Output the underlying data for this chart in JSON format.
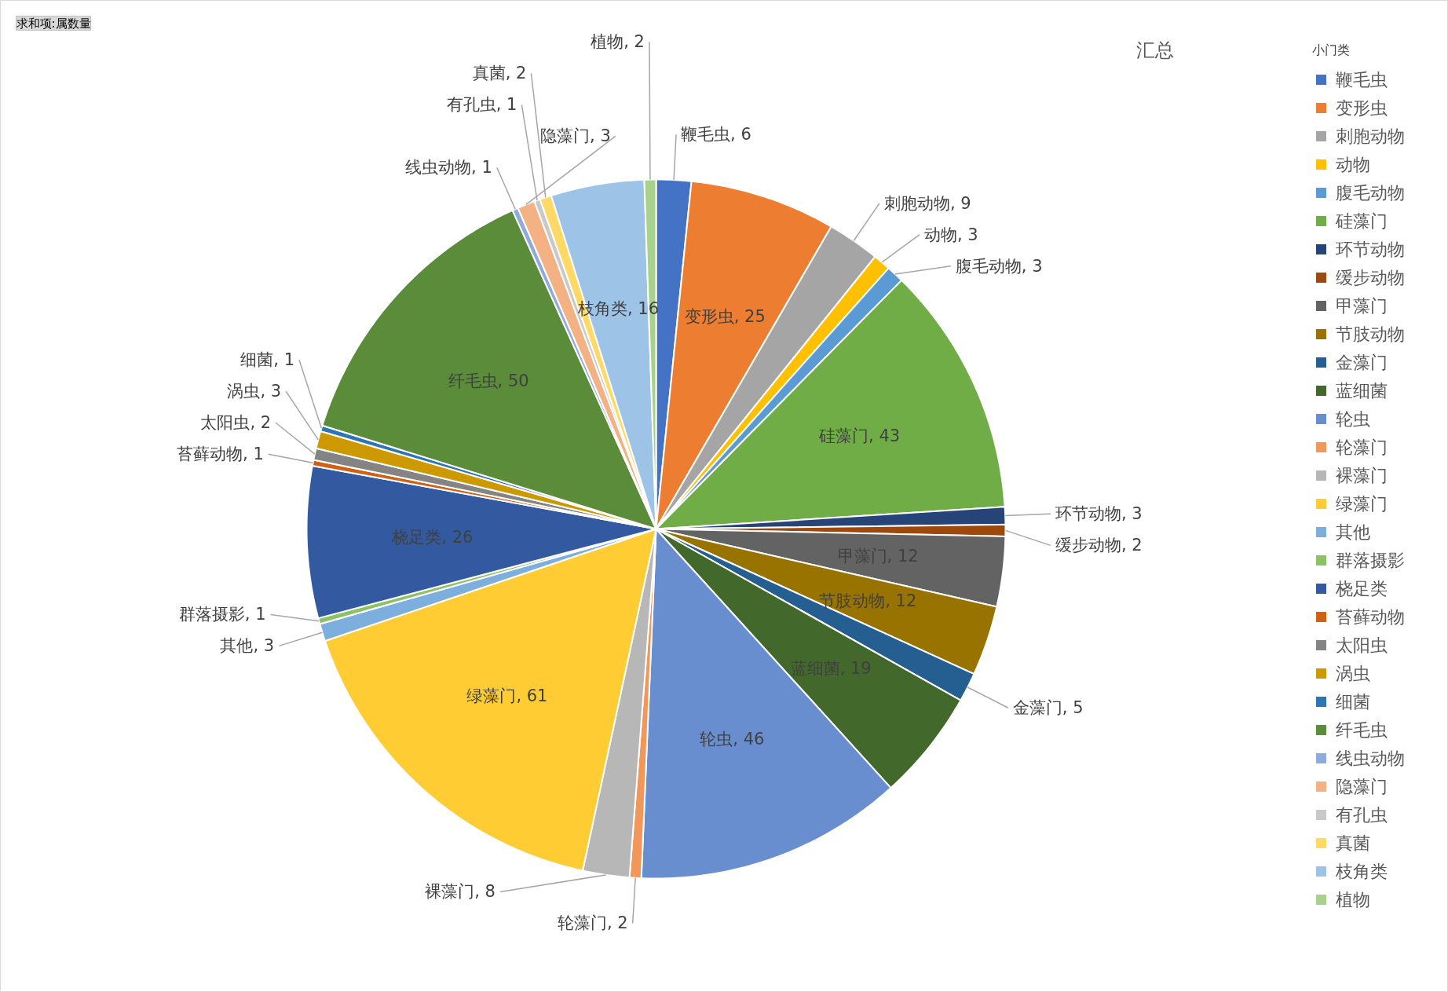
{
  "chart_data": {
    "type": "pie",
    "title": "汇总",
    "legend_title": "小门类",
    "annotations": [
      "求和项:属数量"
    ],
    "legend": "right",
    "value_labels": [
      "鞭毛虫, 6",
      "变形虫, 25",
      "刺胞动物, 9",
      "动物, 3",
      "腹毛动物, 3",
      "硅藻门, 43",
      "环节动物, 3",
      "缓步动物, 2",
      "甲藻门, 12",
      "节肢动物, 12",
      "金藻门, 5",
      "蓝细菌, 19",
      "轮虫, 46",
      "轮藻门, 2",
      "裸藻门, 8",
      "绿藻门, 61",
      "其他, 3",
      "群落摄影, 1",
      "桡足类, 26",
      "苔藓动物, 1",
      "太阳虫, 2",
      "涡虫, 3",
      "细菌, 1",
      "纤毛虫, 50",
      "线虫动物, 1",
      "隐藻门, 3",
      "有孔虫, 1",
      "真菌, 2",
      "枝角类, 16",
      "植物, 2"
    ],
    "categories": [
      "鞭毛虫",
      "变形虫",
      "刺胞动物",
      "动物",
      "腹毛动物",
      "硅藻门",
      "环节动物",
      "缓步动物",
      "甲藻门",
      "节肢动物",
      "金藻门",
      "蓝细菌",
      "轮虫",
      "轮藻门",
      "裸藻门",
      "绿藻门",
      "其他",
      "群落摄影",
      "桡足类",
      "苔藓动物",
      "太阳虫",
      "涡虫",
      "细菌",
      "纤毛虫",
      "线虫动物",
      "隐藻门",
      "有孔虫",
      "真菌",
      "枝角类",
      "植物"
    ],
    "values": [
      6,
      25,
      9,
      3,
      3,
      43,
      3,
      2,
      12,
      12,
      5,
      19,
      46,
      2,
      8,
      61,
      3,
      1,
      26,
      1,
      2,
      3,
      1,
      50,
      1,
      3,
      1,
      2,
      16,
      2
    ],
    "colors": [
      "#4472c4",
      "#ed7d31",
      "#a5a5a5",
      "#ffc000",
      "#5b9bd5",
      "#70ad47",
      "#264478",
      "#9e480e",
      "#636363",
      "#997300",
      "#255e91",
      "#43682b",
      "#698ed0",
      "#f1975a",
      "#b7b7b7",
      "#ffcd33",
      "#7cafdd",
      "#8cc168",
      "#335aa1",
      "#d26012",
      "#848484",
      "#cc9a00",
      "#2e75b6",
      "#5b8c39",
      "#8faadc",
      "#f4b183",
      "#c9c9c9",
      "#ffd966",
      "#9dc3e6",
      "#a9d18e"
    ]
  }
}
